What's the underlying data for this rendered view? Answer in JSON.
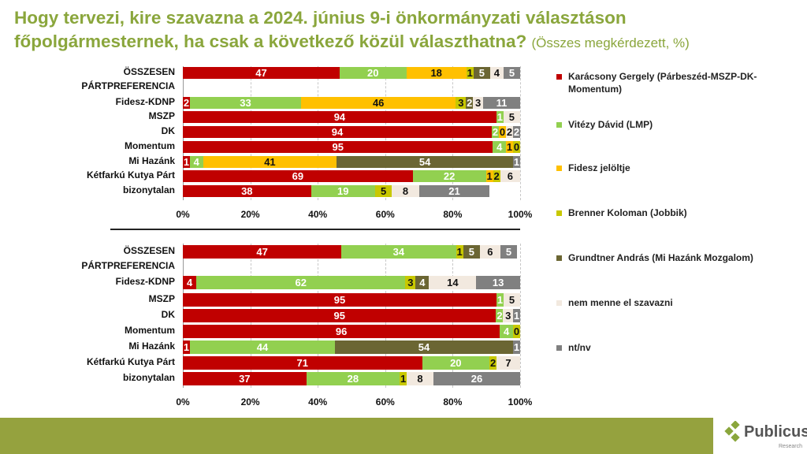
{
  "title": {
    "line1": "Hogy tervezi, kire szavazna a 2024. június 9-i önkormányzati választáson",
    "line2": "főpolgármesternek, ha csak a következő közül választhatna?",
    "subtitle": "(Összes megkérdezett, %)"
  },
  "logo": {
    "name": "Publicus",
    "sub": "Research"
  },
  "chart_data": [
    {
      "type": "bar",
      "stacked": true,
      "orientation": "horizontal",
      "xlim": [
        0,
        100
      ],
      "ticks": [
        "0%",
        "20%",
        "40%",
        "60%",
        "80%",
        "100%"
      ],
      "categories": [
        "ÖSSZESEN",
        "PÁRTPREFERENCIA",
        "Fidesz-KDNP",
        "MSZP",
        "DK",
        "Momentum",
        "Mi Hazánk",
        "Kétfarkú Kutya Párt",
        "bizonytalan"
      ],
      "series": [
        {
          "name": "Karácsony Gergely (Párbeszéd-MSZP-DK-Momentum)",
          "values": [
            47,
            null,
            2,
            94,
            94,
            95,
            1,
            69,
            38
          ]
        },
        {
          "name": "Vitézy Dávid (LMP)",
          "values": [
            20,
            null,
            33,
            1,
            2,
            4,
            4,
            22,
            19
          ]
        },
        {
          "name": "Fidesz jelöltje",
          "values": [
            18,
            null,
            46,
            null,
            0,
            1,
            41,
            1,
            null
          ]
        },
        {
          "name": "Brenner Koloman (Jobbik)",
          "values": [
            1,
            null,
            3,
            null,
            null,
            0,
            null,
            2,
            5
          ]
        },
        {
          "name": "Grundtner András (Mi Hazánk Mozgalom)",
          "values": [
            5,
            null,
            2,
            null,
            null,
            null,
            54,
            null,
            null
          ]
        },
        {
          "name": "nem menne el szavazni",
          "values": [
            4,
            null,
            3,
            5,
            2,
            null,
            null,
            6,
            8
          ]
        },
        {
          "name": "nt/nv",
          "values": [
            5,
            null,
            11,
            null,
            2,
            null,
            1,
            null,
            21
          ]
        }
      ]
    },
    {
      "type": "bar",
      "stacked": true,
      "orientation": "horizontal",
      "xlim": [
        0,
        100
      ],
      "ticks": [
        "0%",
        "20%",
        "40%",
        "60%",
        "80%",
        "100%"
      ],
      "categories": [
        "ÖSSZESEN",
        "PÁRTPREFERENCIA",
        "Fidesz-KDNP",
        "MSZP",
        "DK",
        "Momentum",
        "Mi Hazánk",
        "Kétfarkú Kutya Párt",
        "bizonytalan"
      ],
      "series": [
        {
          "name": "Karácsony Gergely (Párbeszéd-MSZP-DK-Momentum)",
          "values": [
            47,
            null,
            4,
            95,
            95,
            96,
            1,
            71,
            37
          ]
        },
        {
          "name": "Vitézy Dávid (LMP)",
          "values": [
            34,
            null,
            62,
            1,
            2,
            4,
            44,
            20,
            28
          ]
        },
        {
          "name": "Fidesz jelöltje",
          "values": [
            null,
            null,
            null,
            null,
            null,
            null,
            null,
            null,
            null
          ]
        },
        {
          "name": "Brenner Koloman (Jobbik)",
          "values": [
            1,
            null,
            3,
            null,
            null,
            0,
            null,
            2,
            1
          ]
        },
        {
          "name": "Grundtner András (Mi Hazánk Mozgalom)",
          "values": [
            5,
            null,
            4,
            null,
            null,
            null,
            54,
            null,
            null
          ]
        },
        {
          "name": "nem menne el szavazni",
          "values": [
            6,
            null,
            14,
            5,
            3,
            null,
            null,
            7,
            8
          ]
        },
        {
          "name": "nt/nv",
          "values": [
            5,
            null,
            13,
            null,
            1,
            null,
            1,
            null,
            26
          ]
        }
      ]
    }
  ],
  "colors": [
    "#c00000",
    "#92d050",
    "#ffc000",
    "#c8c800",
    "#6b6633",
    "#f2e9df",
    "#808080"
  ],
  "text_colors": [
    "#ffffff",
    "#ffffff",
    "#111111",
    "#111111",
    "#ffffff",
    "#111111",
    "#ffffff"
  ]
}
